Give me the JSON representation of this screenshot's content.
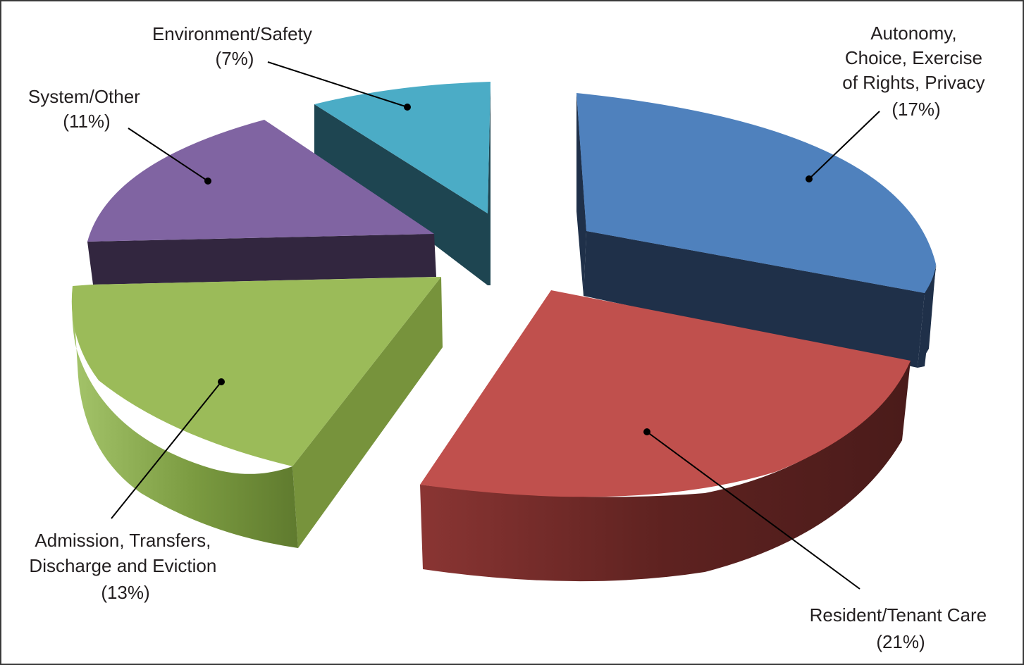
{
  "chart_data": {
    "type": "pie",
    "style": "3d-exploded",
    "title": "",
    "slices": [
      {
        "id": "autonomy",
        "label_lines": [
          "Autonomy,",
          "Choice, Exercise",
          "of Rights, Privacy",
          "(17%)"
        ],
        "value": 17,
        "top_color": "#4f81bd",
        "side_color": "#1f3049"
      },
      {
        "id": "resident-care",
        "label_lines": [
          "Resident/Tenant Care",
          "(21%)"
        ],
        "value": 21,
        "top_color": "#c0504d",
        "side_color": "#4f1f1e"
      },
      {
        "id": "admission",
        "label_lines": [
          "Admission, Transfers,",
          "Discharge and Eviction",
          "(13%)"
        ],
        "value": 13,
        "top_color": "#9bbb59",
        "side_color": "#77933c"
      },
      {
        "id": "system-other",
        "label_lines": [
          "System/Other",
          "(11%)"
        ],
        "value": 11,
        "top_color": "#8064a2",
        "side_color": "#32263f"
      },
      {
        "id": "environment",
        "label_lines": [
          "Environment/Safety",
          "(7%)"
        ],
        "value": 7,
        "top_color": "#4bacc6",
        "side_color": "#1e4551"
      }
    ]
  }
}
